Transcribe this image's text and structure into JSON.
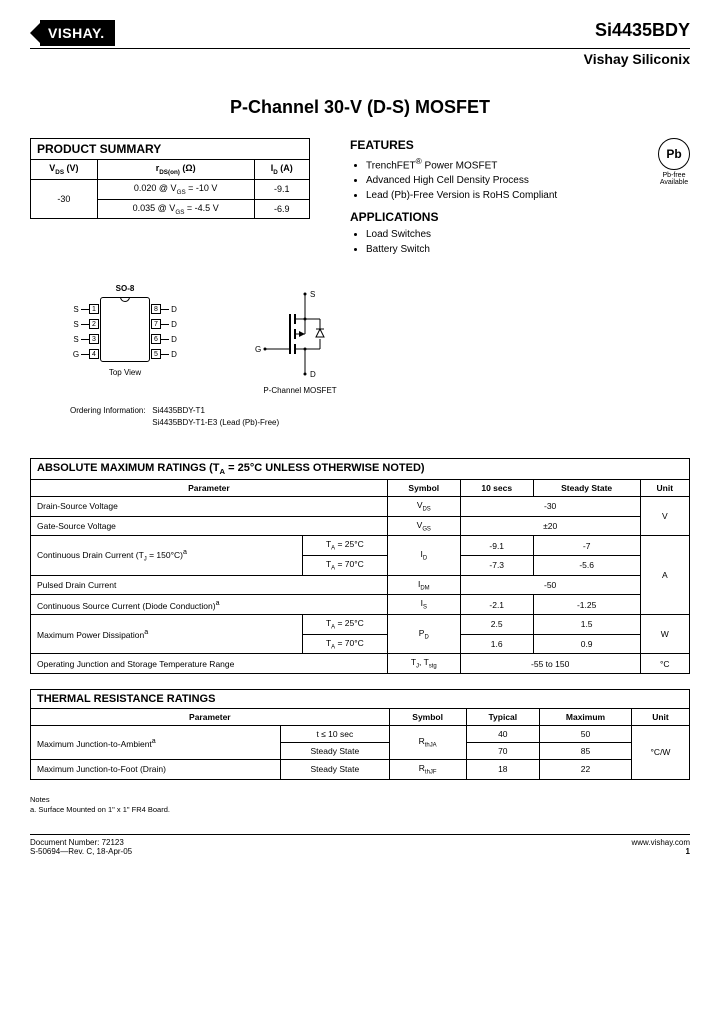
{
  "header": {
    "logo": "VISHAY.",
    "part": "Si4435BDY",
    "subtitle": "Vishay Siliconix"
  },
  "title": "P-Channel 30-V (D-S) MOSFET",
  "summary": {
    "title": "PRODUCT SUMMARY",
    "h1": "V<sub>DS</sub> (V)",
    "h2": "r<sub>DS(on)</sub> (Ω)",
    "h3": "I<sub>D</sub> (A)",
    "vds": "-30",
    "r1": "0.020 @ V<sub>GS</sub> = -10 V",
    "i1": "-9.1",
    "r2": "0.035 @ V<sub>GS</sub> = -4.5 V",
    "i2": "-6.9"
  },
  "features": {
    "title": "FEATURES",
    "items": [
      "TrenchFET<sup>®</sup> Power MOSFET",
      "Advanced High Cell Density Process",
      "Lead (Pb)-Free Version is RoHS Compliant"
    ]
  },
  "applications": {
    "title": "APPLICATIONS",
    "items": [
      "Load Switches",
      "Battery Switch"
    ]
  },
  "pb": {
    "symbol": "Pb",
    "label1": "Pb-free",
    "label2": "Available"
  },
  "pkg": {
    "name": "SO-8",
    "pins_left": [
      {
        "n": "1",
        "l": "S"
      },
      {
        "n": "2",
        "l": "S"
      },
      {
        "n": "3",
        "l": "S"
      },
      {
        "n": "4",
        "l": "G"
      }
    ],
    "pins_right": [
      {
        "n": "8",
        "l": "D"
      },
      {
        "n": "7",
        "l": "D"
      },
      {
        "n": "6",
        "l": "D"
      },
      {
        "n": "5",
        "l": "D"
      }
    ],
    "caption": "Top View"
  },
  "schematic": {
    "caption": "P-Channel MOSFET",
    "s": "S",
    "d": "D",
    "g": "G"
  },
  "ordering": {
    "label": "Ordering Information:",
    "line1": "Si4435BDY-T1",
    "line2": "Si4435BDY-T1-E3 (Lead (Pb)-Free)"
  },
  "abs": {
    "title": "ABSOLUTE MAXIMUM RATINGS (T<sub>A</sub> = 25°C UNLESS OTHERWISE NOTED)",
    "h_param": "Parameter",
    "h_sym": "Symbol",
    "h_10": "10 secs",
    "h_ss": "Steady State",
    "h_unit": "Unit",
    "rows": [
      {
        "p": "Drain-Source Voltage",
        "s": "V<sub>DS</sub>",
        "v": "-30",
        "u": "V"
      },
      {
        "p": "Gate-Source Voltage",
        "s": "V<sub>GS</sub>",
        "v": "±20",
        "u": ""
      },
      {
        "p": "Continuous Drain Current (T<sub>J</sub> = 150°C)<sup>a</sup>",
        "c1": "T<sub>A</sub> = 25°C",
        "s": "I<sub>D</sub>",
        "v10": "-9.1",
        "vss": "-7",
        "u": "A"
      },
      {
        "p": "",
        "c1": "T<sub>A</sub> = 70°C",
        "s": "",
        "v10": "-7.3",
        "vss": "-5.6",
        "u": ""
      },
      {
        "p": "Pulsed Drain Current",
        "s": "I<sub>DM</sub>",
        "v": "-50",
        "u": ""
      },
      {
        "p": "Continuous Source Current (Diode Conduction)<sup>a</sup>",
        "s": "I<sub>S</sub>",
        "v10": "-2.1",
        "vss": "-1.25",
        "u": ""
      },
      {
        "p": "Maximum Power Dissipation<sup>a</sup>",
        "c1": "T<sub>A</sub> = 25°C",
        "s": "P<sub>D</sub>",
        "v10": "2.5",
        "vss": "1.5",
        "u": "W"
      },
      {
        "p": "",
        "c1": "T<sub>A</sub> = 70°C",
        "s": "",
        "v10": "1.6",
        "vss": "0.9",
        "u": ""
      },
      {
        "p": "Operating Junction and Storage Temperature Range",
        "s": "T<sub>J</sub>, T<sub>stg</sub>",
        "v": "-55 to 150",
        "u": "°C"
      }
    ]
  },
  "thermal": {
    "title": "THERMAL RESISTANCE RATINGS",
    "h_param": "Parameter",
    "h_sym": "Symbol",
    "h_typ": "Typical",
    "h_max": "Maximum",
    "h_unit": "Unit",
    "r1p": "Maximum Junction-to-Ambient<sup>a</sup>",
    "r1c": "t ≤ 10 sec",
    "r1s": "R<sub>thJA</sub>",
    "r1t": "40",
    "r1m": "50",
    "r1u": "°C/W",
    "r2c": "Steady State",
    "r2t": "70",
    "r2m": "85",
    "r3p": "Maximum Junction-to-Foot (Drain)",
    "r3c": "Steady State",
    "r3s": "R<sub>thJF</sub>",
    "r3t": "18",
    "r3m": "22"
  },
  "notes": {
    "label": "Notes",
    "a": "a.  Surface Mounted on 1\" x 1\" FR4 Board."
  },
  "footer": {
    "doc": "Document Number: 72123",
    "rev": "S-50694—Rev. C, 18-Apr-05",
    "url": "www.vishay.com",
    "page": "1"
  }
}
